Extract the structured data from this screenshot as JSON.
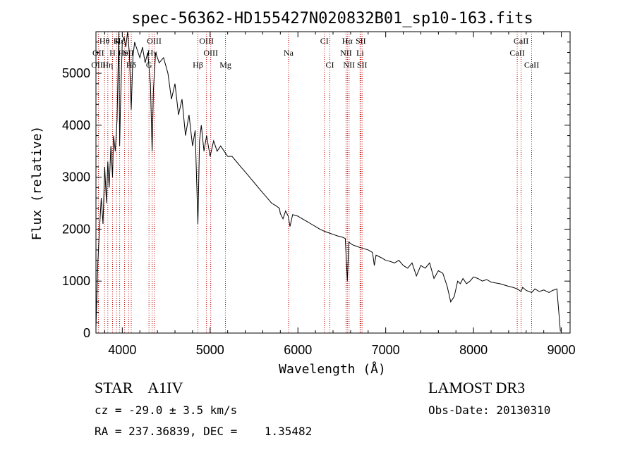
{
  "chart_data": {
    "type": "line",
    "title": "spec-56362-HD155427N020832B01_sp10-163.fits",
    "xlabel": "Wavelength (Å)",
    "ylabel": "Flux (relative)",
    "xlim": [
      3700,
      9100
    ],
    "ylim": [
      0,
      5800
    ],
    "xticks": [
      4000,
      5000,
      6000,
      7000,
      8000,
      9000
    ],
    "yticks": [
      0,
      1000,
      2000,
      3000,
      4000,
      5000
    ],
    "series": [
      {
        "name": "spectrum",
        "x": [
          3700,
          3720,
          3740,
          3760,
          3780,
          3800,
          3820,
          3835,
          3850,
          3870,
          3889,
          3900,
          3920,
          3940,
          3960,
          3970,
          3980,
          4000,
          4020,
          4040,
          4060,
          4080,
          4102,
          4120,
          4140,
          4160,
          4200,
          4230,
          4260,
          4290,
          4320,
          4340,
          4355,
          4380,
          4420,
          4470,
          4520,
          4560,
          4600,
          4640,
          4680,
          4720,
          4760,
          4800,
          4830,
          4861,
          4880,
          4900,
          4930,
          4960,
          5000,
          5040,
          5080,
          5120,
          5160,
          5200,
          5250,
          5300,
          5350,
          5400,
          5450,
          5500,
          5550,
          5600,
          5650,
          5700,
          5750,
          5790,
          5800,
          5830,
          5860,
          5890,
          5910,
          5940,
          6000,
          6050,
          6100,
          6150,
          6200,
          6250,
          6300,
          6350,
          6400,
          6450,
          6500,
          6540,
          6563,
          6580,
          6620,
          6700,
          6800,
          6850,
          6870,
          6890,
          6950,
          7000,
          7050,
          7100,
          7150,
          7200,
          7250,
          7300,
          7350,
          7400,
          7450,
          7500,
          7550,
          7600,
          7650,
          7700,
          7740,
          7780,
          7820,
          7850,
          7880,
          7920,
          7960,
          8000,
          8050,
          8100,
          8150,
          8200,
          8300,
          8400,
          8450,
          8500,
          8542,
          8560,
          8600,
          8662,
          8700,
          8750,
          8800,
          8860,
          8900,
          8950,
          8990
        ],
        "values": [
          100,
          1300,
          2000,
          2600,
          2100,
          3200,
          2500,
          3300,
          2800,
          3600,
          3000,
          3800,
          3500,
          4100,
          5800,
          3600,
          4400,
          5600,
          5700,
          5500,
          5800,
          5400,
          4300,
          5300,
          5600,
          5500,
          5300,
          5500,
          5200,
          5400,
          4800,
          3500,
          4700,
          5400,
          5200,
          5300,
          5000,
          4500,
          4800,
          4200,
          4500,
          3800,
          4200,
          3600,
          3900,
          2100,
          3700,
          4000,
          3500,
          3800,
          3400,
          3700,
          3500,
          3600,
          3500,
          3400,
          3400,
          3300,
          3200,
          3100,
          3000,
          2900,
          2800,
          2700,
          2600,
          2500,
          2450,
          2400,
          2300,
          2200,
          2350,
          2250,
          2050,
          2280,
          2250,
          2200,
          2150,
          2100,
          2050,
          2000,
          1960,
          1930,
          1900,
          1870,
          1850,
          1820,
          1000,
          1750,
          1700,
          1650,
          1600,
          1550,
          1300,
          1500,
          1450,
          1400,
          1380,
          1350,
          1400,
          1300,
          1250,
          1350,
          1100,
          1300,
          1250,
          1350,
          1050,
          1200,
          1150,
          900,
          600,
          700,
          1000,
          950,
          1050,
          950,
          1000,
          1080,
          1050,
          1000,
          1030,
          980,
          950,
          900,
          880,
          850,
          800,
          880,
          820,
          780,
          850,
          800,
          830,
          780,
          820,
          850,
          30
        ]
      }
    ],
    "lines": [
      {
        "name": "Hθ",
        "x": 3797,
        "row": 1
      },
      {
        "name": "K",
        "x": 3934,
        "row": 1
      },
      {
        "name": "Hε",
        "x": 3970,
        "row": 1
      },
      {
        "name": "OIII",
        "x": 4363,
        "row": 1
      },
      {
        "name": "OIII",
        "x": 4959,
        "row": 1
      },
      {
        "name": "CI",
        "x": 6302,
        "row": 1
      },
      {
        "name": "Hα",
        "x": 6563,
        "row": 1
      },
      {
        "name": "SII",
        "x": 6716,
        "row": 1
      },
      {
        "name": "CaII",
        "x": 8542,
        "row": 1
      },
      {
        "name": "OII",
        "x": 3727,
        "row": 2
      },
      {
        "name": "H",
        "x": 3889,
        "row": 2
      },
      {
        "name": "HeI",
        "x": 4026,
        "row": 2
      },
      {
        "name": "SII",
        "x": 4072,
        "row": 2
      },
      {
        "name": "Hγ",
        "x": 4340,
        "row": 2
      },
      {
        "name": "OIII",
        "x": 5007,
        "row": 2
      },
      {
        "name": "Na",
        "x": 5893,
        "row": 2
      },
      {
        "name": "NII",
        "x": 6548,
        "row": 2
      },
      {
        "name": "Li",
        "x": 6708,
        "row": 2
      },
      {
        "name": "CaII",
        "x": 8498,
        "row": 2
      },
      {
        "name": "OIII",
        "x": 3729,
        "row": 3
      },
      {
        "name": "Hη",
        "x": 3835,
        "row": 3
      },
      {
        "name": "Hδ",
        "x": 4102,
        "row": 3
      },
      {
        "name": "G",
        "x": 4304,
        "row": 3
      },
      {
        "name": "Hβ",
        "x": 4861,
        "row": 3
      },
      {
        "name": "Mg",
        "x": 5175,
        "row": 3
      },
      {
        "name": "CI",
        "x": 6364,
        "row": 3
      },
      {
        "name": "NII",
        "x": 6583,
        "row": 3
      },
      {
        "name": "SII",
        "x": 6731,
        "row": 3
      },
      {
        "name": "CaII",
        "x": 8662,
        "row": 3
      }
    ]
  },
  "info": {
    "class_line": "STAR    A1IV",
    "survey": "LAMOST DR3",
    "cz": "cz = -29.0 ± 3.5 km/s",
    "obs_date": "Obs-Date: 20130310",
    "radec": "RA = 237.36839, DEC =    1.35482"
  }
}
